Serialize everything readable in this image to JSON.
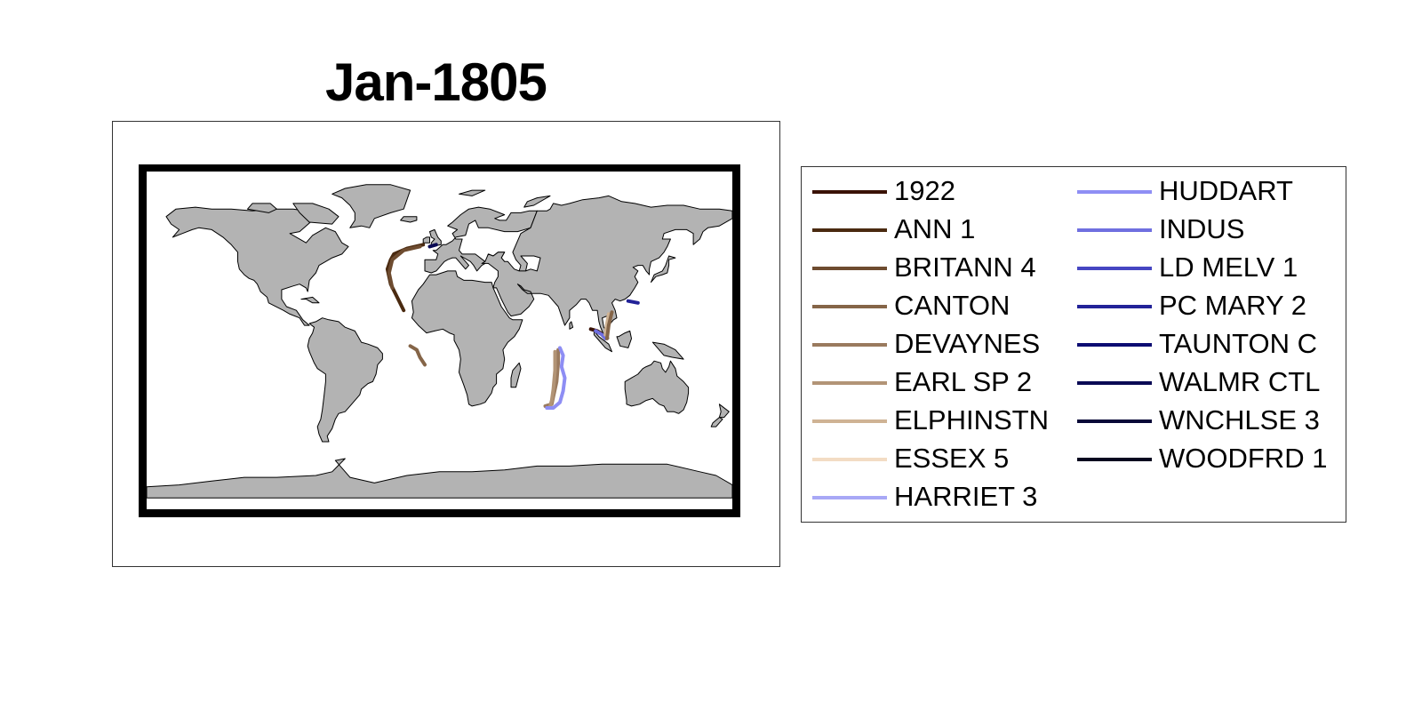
{
  "title": "Jan-1805",
  "map": {
    "land_color": "#b3b3b3",
    "ocean_color": "#ffffff",
    "frame_color": "#000000"
  },
  "legend": {
    "columns": [
      [
        {
          "label": "1922",
          "color": "#3a1206"
        },
        {
          "label": "ANN 1",
          "color": "#4a2a10"
        },
        {
          "label": "BRITANN 4",
          "color": "#6e4c30"
        },
        {
          "label": "CANTON",
          "color": "#856548"
        },
        {
          "label": "DEVAYNES",
          "color": "#9a7a5e"
        },
        {
          "label": "EARL SP 2",
          "color": "#b29476"
        },
        {
          "label": "ELPHINSTN",
          "color": "#cfb394"
        },
        {
          "label": "ESSEX 5",
          "color": "#f3dcc4"
        },
        {
          "label": "HARRIET 3",
          "color": "#a8a8f6"
        }
      ],
      [
        {
          "label": "HUDDART",
          "color": "#8e8ef4"
        },
        {
          "label": "INDUS",
          "color": "#6f6fe0"
        },
        {
          "label": "LD MELV 1",
          "color": "#4646c2"
        },
        {
          "label": "PC MARY 2",
          "color": "#222298"
        },
        {
          "label": "TAUNTON C",
          "color": "#0c0c72"
        },
        {
          "label": "WALMR CTL",
          "color": "#0a0a55"
        },
        {
          "label": "WNCHLSE 3",
          "color": "#080838"
        },
        {
          "label": "WOODFRD 1",
          "color": "#05051f"
        }
      ]
    ]
  },
  "tracks": [
    {
      "ship": "ANN 1",
      "color": "#4a2a10",
      "coords": [
        [
          -10,
          51
        ],
        [
          -20,
          49
        ],
        [
          -28,
          46
        ],
        [
          -30,
          43
        ],
        [
          -32,
          38
        ],
        [
          -30,
          30
        ],
        [
          -26,
          23
        ],
        [
          -22,
          16
        ]
      ]
    },
    {
      "ship": "BRITANN 4",
      "color": "#6e4c30",
      "coords": [
        [
          -12,
          50
        ],
        [
          -22,
          48
        ],
        [
          -29,
          43
        ],
        [
          -31,
          36
        ],
        [
          -29,
          28
        ]
      ]
    },
    {
      "ship": "WALMR CTL",
      "color": "#0a0a55",
      "coords": [
        [
          -6,
          50
        ],
        [
          -2,
          51
        ]
      ]
    },
    {
      "ship": "CANTON",
      "color": "#856548",
      "coords": [
        [
          -18,
          -3
        ],
        [
          -14,
          -5
        ],
        [
          -12,
          -9
        ],
        [
          -9,
          -13
        ]
      ]
    },
    {
      "ship": "DEVAYNES",
      "color": "#9a7a5e",
      "coords": [
        [
          73,
          -5
        ],
        [
          73,
          -12
        ],
        [
          72,
          -22
        ],
        [
          70,
          -30
        ],
        [
          69,
          -34
        ],
        [
          65,
          -35
        ]
      ]
    },
    {
      "ship": "EARL SP 2",
      "color": "#b29476",
      "coords": [
        [
          71,
          -6
        ],
        [
          71,
          -16
        ],
        [
          70,
          -26
        ],
        [
          69,
          -32
        ],
        [
          68,
          -35
        ]
      ]
    },
    {
      "ship": "HUDDART",
      "color": "#8e8ef4",
      "coords": [
        [
          74,
          -4
        ],
        [
          76,
          -8
        ],
        [
          75,
          -14
        ],
        [
          77,
          -20
        ],
        [
          76,
          -27
        ],
        [
          74,
          -33
        ],
        [
          70,
          -36
        ],
        [
          66,
          -36
        ]
      ]
    },
    {
      "ship": "1922",
      "color": "#3a1206",
      "coords": [
        [
          93,
          6
        ],
        [
          97,
          5
        ],
        [
          99,
          4
        ],
        [
          101,
          2
        ]
      ]
    },
    {
      "ship": "INDUS",
      "color": "#6f6fe0",
      "coords": [
        [
          96,
          5
        ],
        [
          100,
          3
        ],
        [
          102,
          1
        ]
      ]
    },
    {
      "ship": "ELPHINSTN",
      "color": "#cfb394",
      "coords": [
        [
          102,
          3
        ],
        [
          103,
          9
        ],
        [
          104,
          14
        ]
      ]
    },
    {
      "ship": "CANTON",
      "color": "#856548",
      "coords": [
        [
          103,
          1
        ],
        [
          104,
          8
        ],
        [
          106,
          15
        ]
      ]
    },
    {
      "ship": "PC MARY 2",
      "color": "#222298",
      "coords": [
        [
          116,
          21
        ],
        [
          122,
          20
        ]
      ]
    }
  ]
}
